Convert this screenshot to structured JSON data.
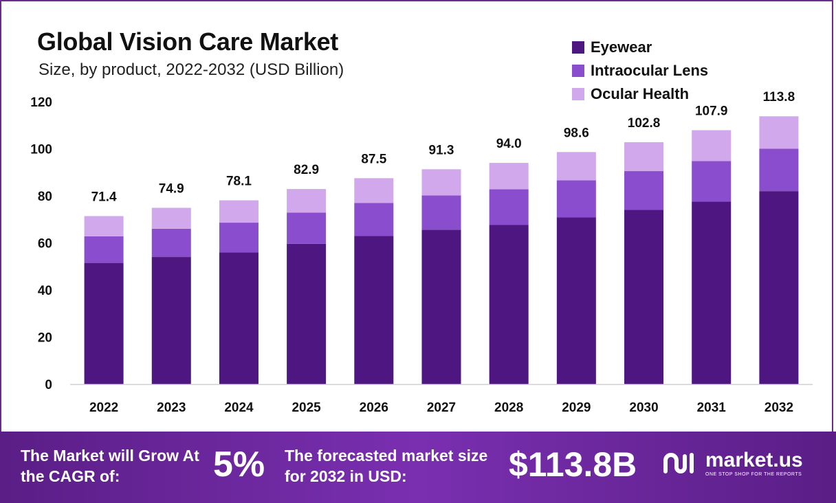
{
  "header": {
    "title": "Global Vision Care Market",
    "subtitle": "Size, by product, 2022-2032 (USD Billion)"
  },
  "legend": [
    {
      "label": "Eyewear",
      "color": "#4d1680"
    },
    {
      "label": "Intraocular Lens",
      "color": "#8a4dce"
    },
    {
      "label": "Ocular Health",
      "color": "#d2a8ec"
    }
  ],
  "chart_data": {
    "type": "bar",
    "stacked": true,
    "title": "Global Vision Care Market",
    "subtitle": "Size, by product, 2022-2032 (USD Billion)",
    "categories": [
      "2022",
      "2023",
      "2024",
      "2025",
      "2026",
      "2027",
      "2028",
      "2029",
      "2030",
      "2031",
      "2032"
    ],
    "series": [
      {
        "name": "Eyewear",
        "color": "#4d1680",
        "values": [
          51.5,
          54.0,
          56.0,
          59.6,
          63.0,
          65.6,
          67.7,
          70.8,
          74.1,
          77.6,
          82.0
        ]
      },
      {
        "name": "Intraocular Lens",
        "color": "#8a4dce",
        "values": [
          11.3,
          12.0,
          12.6,
          13.3,
          14.0,
          14.6,
          15.1,
          15.8,
          16.4,
          17.2,
          18.0
        ]
      },
      {
        "name": "Ocular Health",
        "color": "#d2a8ec",
        "values": [
          8.6,
          8.9,
          9.5,
          10.0,
          10.5,
          11.1,
          11.2,
          12.0,
          12.3,
          13.1,
          13.8
        ]
      }
    ],
    "totals": [
      "71.4",
      "74.9",
      "78.1",
      "82.9",
      "87.5",
      "91.3",
      "94.0",
      "98.6",
      "102.8",
      "107.9",
      "113.8"
    ],
    "y_ticks": [
      "0",
      "20",
      "40",
      "60",
      "80",
      "100",
      "120"
    ],
    "ylim": [
      0,
      120
    ],
    "grid": false,
    "legend_position": "top-right"
  },
  "footer": {
    "grow_text": "The Market will Grow At the CAGR of:",
    "cagr": "5%",
    "forecast_text": "The forecasted market size for 2032 in USD:",
    "forecast_value": "$113.8B",
    "brand_name": "market.us",
    "brand_tagline": "ONE STOP SHOP FOR THE REPORTS",
    "logo_icon": "market-us-logo-icon"
  }
}
